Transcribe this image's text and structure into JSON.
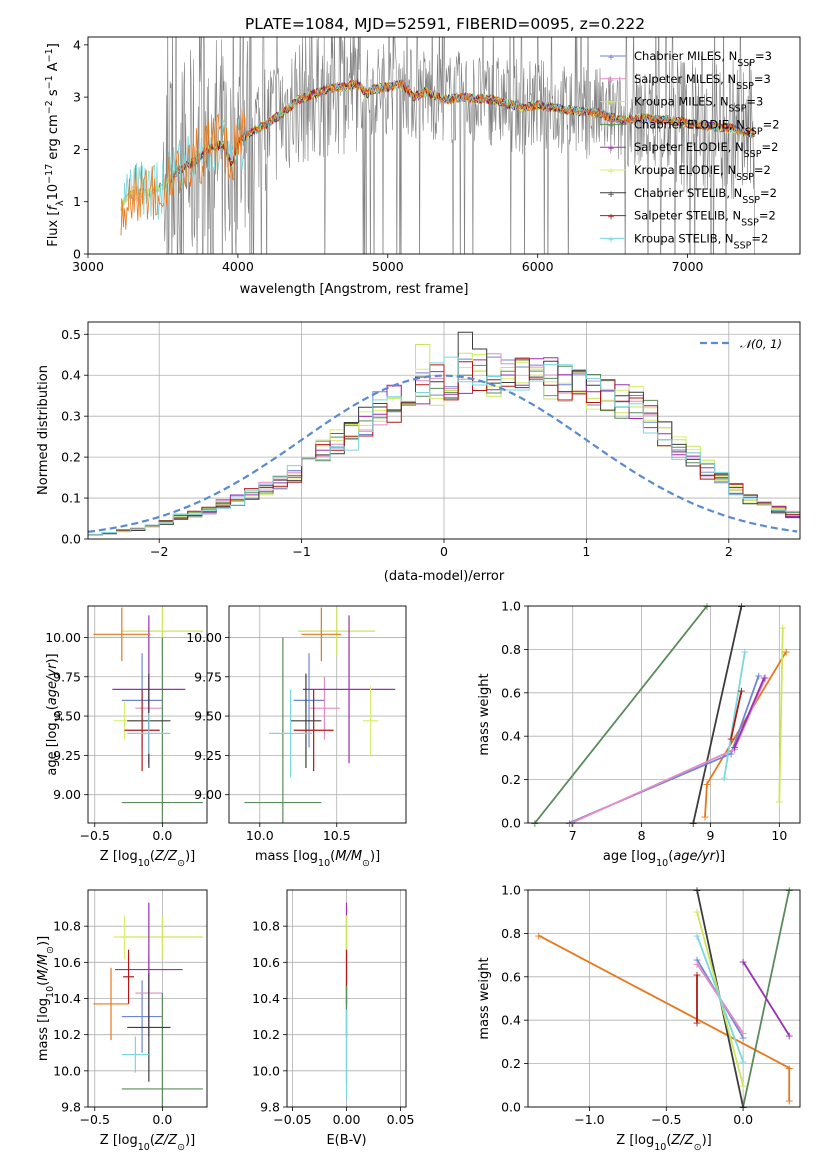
{
  "figure": {
    "title": "PLATE=1084, MJD=52591, FIBERID=0095, z=0.222"
  },
  "colors": {
    "chabrier_miles": "#6f86d6",
    "salpeter_miles": "#e58cc6",
    "kroupa_miles": "#cce65b",
    "chabrier_elodie": "#5b8a5b",
    "salpeter_elodie": "#9a2fb3",
    "kroupa_elodie": "#d7ef6c",
    "chabrier_stelib": "#3d3d3d",
    "salpeter_stelib": "#b01818",
    "kroupa_stelib": "#7ad8dc",
    "data_grey": "#808080",
    "orange": "#e6781e",
    "normal_curve": "#5b8ad0"
  },
  "chart_data": [
    {
      "id": "spectrum",
      "type": "line",
      "xlabel": "wavelength [Angstrom, rest frame]",
      "ylabel_parts": [
        "Flux [",
        "f",
        "λ",
        "10",
        "−17",
        " erg cm",
        "−2",
        " s",
        "−1",
        " A",
        "−1",
        "]"
      ],
      "xlim": [
        3000,
        7750
      ],
      "ylim": [
        0,
        4.15
      ],
      "xticks": [
        3000,
        4000,
        5000,
        6000,
        7000
      ],
      "yticks": [
        0,
        1,
        2,
        3,
        4
      ],
      "grid": false,
      "legend_position": "top-right",
      "legend": [
        {
          "base": "Chabrier MILES, N",
          "sub": "SSP",
          "tail": "=3",
          "color": "#6f86d6"
        },
        {
          "base": "Salpeter MILES, N",
          "sub": "SSP",
          "tail": "=3",
          "color": "#e58cc6"
        },
        {
          "base": "Kroupa MILES, N",
          "sub": "SSP",
          "tail": "=3",
          "color": "#cce65b"
        },
        {
          "base": "Chabrier ELODIE, N",
          "sub": "SSP",
          "tail": "=2",
          "color": "#5b8a5b"
        },
        {
          "base": "Salpeter ELODIE, N",
          "sub": "SSP",
          "tail": "=2",
          "color": "#9a2fb3"
        },
        {
          "base": "Kroupa ELODIE, N",
          "sub": "SSP",
          "tail": "=2",
          "color": "#d7ef6c"
        },
        {
          "base": "Chabrier STELIB, N",
          "sub": "SSP",
          "tail": "=2",
          "color": "#3d3d3d"
        },
        {
          "base": "Salpeter STELIB, N",
          "sub": "SSP",
          "tail": "=2",
          "color": "#b01818"
        },
        {
          "base": "Kroupa STELIB, N",
          "sub": "SSP",
          "tail": "=2",
          "color": "#7ad8dc"
        }
      ],
      "model_continuum": [
        [
          3220,
          0.95
        ],
        [
          3300,
          1.2
        ],
        [
          3400,
          1.15
        ],
        [
          3500,
          1.3
        ],
        [
          3600,
          1.6
        ],
        [
          3700,
          1.75
        ],
        [
          3800,
          2.0
        ],
        [
          3900,
          2.1
        ],
        [
          3960,
          1.7
        ],
        [
          4000,
          2.15
        ],
        [
          4100,
          2.35
        ],
        [
          4200,
          2.5
        ],
        [
          4300,
          2.7
        ],
        [
          4400,
          2.95
        ],
        [
          4500,
          3.05
        ],
        [
          4600,
          3.15
        ],
        [
          4700,
          3.2
        ],
        [
          4800,
          3.25
        ],
        [
          4860,
          3.05
        ],
        [
          4900,
          3.15
        ],
        [
          5000,
          3.2
        ],
        [
          5100,
          3.25
        ],
        [
          5175,
          3.0
        ],
        [
          5250,
          3.1
        ],
        [
          5400,
          2.95
        ],
        [
          5500,
          3.0
        ],
        [
          5700,
          2.95
        ],
        [
          5890,
          2.8
        ],
        [
          6000,
          2.85
        ],
        [
          6200,
          2.75
        ],
        [
          6400,
          2.7
        ],
        [
          6563,
          2.55
        ],
        [
          6700,
          2.6
        ],
        [
          6900,
          2.55
        ],
        [
          7100,
          2.45
        ],
        [
          7300,
          2.4
        ],
        [
          7450,
          2.3
        ]
      ],
      "data_range": [
        3220,
        7450
      ],
      "data_noisy_start": 3500
    },
    {
      "id": "residuals",
      "type": "step-histogram",
      "xlabel": "(data-model)/error",
      "ylabel": "Normed distribution",
      "xlim": [
        -2.5,
        2.5
      ],
      "ylim": [
        0,
        0.53
      ],
      "xticks": [
        -2,
        -1,
        0,
        1,
        2
      ],
      "yticks": [
        0.0,
        0.1,
        0.2,
        0.3,
        0.4,
        0.5
      ],
      "grid": true,
      "legend_position": "top-right",
      "legend_label": "𝒩(0, 1)",
      "normal_curve": {
        "mean": 0,
        "sigma": 1,
        "style": "dashed"
      },
      "bin_width": 0.1,
      "bin_start": -2.5,
      "reference_heights": [
        0.012,
        0.014,
        0.02,
        0.024,
        0.03,
        0.04,
        0.055,
        0.062,
        0.07,
        0.085,
        0.095,
        0.11,
        0.125,
        0.14,
        0.16,
        0.2,
        0.22,
        0.24,
        0.25,
        0.29,
        0.32,
        0.33,
        0.35,
        0.37,
        0.38,
        0.39,
        0.4,
        0.41,
        0.4,
        0.41,
        0.42,
        0.41,
        0.39,
        0.38,
        0.37,
        0.36,
        0.35,
        0.34,
        0.33,
        0.3,
        0.26,
        0.22,
        0.2,
        0.17,
        0.15,
        0.12,
        0.1,
        0.085,
        0.07,
        0.06
      ],
      "series": [
        {
          "color": "#6f86d6",
          "peak_bin": 30,
          "peak": 0.42
        },
        {
          "color": "#e58cc6",
          "peak_bin": 27,
          "peak": 0.41
        },
        {
          "color": "#cce65b",
          "peak_bin": 23,
          "peak": 0.475
        },
        {
          "color": "#5b8a5b",
          "peak_bin": 26,
          "peak": 0.4
        },
        {
          "color": "#9a2fb3",
          "peak_bin": 31,
          "peak": 0.44
        },
        {
          "color": "#d7ef6c",
          "peak_bin": 25,
          "peak": 0.4
        },
        {
          "color": "#3d3d3d",
          "peak_bin": 26,
          "peak": 0.505
        },
        {
          "color": "#b01818",
          "peak_bin": 30,
          "peak": 0.44
        },
        {
          "color": "#7ad8dc",
          "peak_bin": 24,
          "peak": 0.43
        }
      ]
    },
    {
      "id": "age_vs_Z",
      "type": "errorbar",
      "xlabel_parts": [
        "Z [log",
        "10",
        "(",
        "Z/Z",
        "⊙",
        ")]"
      ],
      "ylabel_parts": [
        "age  [log",
        "10",
        "(",
        "age/yr",
        ")]"
      ],
      "xlim": [
        -0.55,
        0.33
      ],
      "ylim": [
        8.82,
        10.2
      ],
      "xticks": [
        -0.5,
        0.0
      ],
      "yticks": [
        9.0,
        9.25,
        9.5,
        9.75,
        10.0
      ],
      "xticklabels": [
        "−0.5",
        "0.0"
      ],
      "yticklabels": [
        "9.00",
        "9.25",
        "9.50",
        "9.75",
        "10.00"
      ],
      "grid": true,
      "points": [
        {
          "x": -0.15,
          "y": 9.6,
          "xerr": 0.15,
          "yerr": 0.3,
          "color": "#6f86d6"
        },
        {
          "x": -0.1,
          "y": 9.55,
          "xerr": 0.1,
          "yerr": 0.2,
          "color": "#e58cc6"
        },
        {
          "x": 0.0,
          "y": 10.04,
          "xerr": 0.3,
          "yerr": 0.15,
          "color": "#cce65b"
        },
        {
          "x": 0.0,
          "y": 8.95,
          "xerr": 0.3,
          "yerr": 1.05,
          "color": "#5b8a5b"
        },
        {
          "x": -0.1,
          "y": 9.67,
          "xerr": 0.27,
          "yerr": 0.47,
          "color": "#9a2fb3"
        },
        {
          "x": -0.28,
          "y": 9.47,
          "xerr": 0.08,
          "yerr": 0.12,
          "color": "#d7ef6c"
        },
        {
          "x": -0.1,
          "y": 9.47,
          "xerr": 0.16,
          "yerr": 0.3,
          "color": "#3d3d3d"
        },
        {
          "x": -0.15,
          "y": 9.41,
          "xerr": 0.13,
          "yerr": 0.26,
          "color": "#b01818"
        },
        {
          "x": -0.1,
          "y": 9.39,
          "xerr": 0.16,
          "yerr": 0.13,
          "color": "#7ad8dc"
        },
        {
          "x": -0.3,
          "y": 10.02,
          "xerr": 0.21,
          "yerr": 0.17,
          "color": "#e6781e"
        }
      ]
    },
    {
      "id": "age_vs_mass",
      "type": "errorbar",
      "xlabel_parts": [
        "mass [log",
        "10",
        "(",
        "M/M",
        "⊙",
        ")]"
      ],
      "xlim": [
        9.8,
        10.95
      ],
      "ylim": [
        8.82,
        10.2
      ],
      "xticks": [
        10.0,
        10.5
      ],
      "yticks": [
        9.0,
        9.25,
        9.5,
        9.75,
        10.0
      ],
      "xticklabels": [
        "10.0",
        "10.5"
      ],
      "yticklabels": [
        "9.00",
        "9.25",
        "9.50",
        "9.75",
        "10.00"
      ],
      "grid": true,
      "points": [
        {
          "x": 10.32,
          "y": 9.6,
          "xerr": 0.1,
          "yerr": 0.3,
          "color": "#6f86d6"
        },
        {
          "x": 10.42,
          "y": 9.55,
          "xerr": 0.1,
          "yerr": 0.2,
          "color": "#e58cc6"
        },
        {
          "x": 10.5,
          "y": 10.04,
          "xerr": 0.25,
          "yerr": 0.15,
          "color": "#cce65b"
        },
        {
          "x": 10.15,
          "y": 8.95,
          "xerr": 0.25,
          "yerr": 1.05,
          "color": "#5b8a5b"
        },
        {
          "x": 10.58,
          "y": 9.67,
          "xerr": 0.3,
          "yerr": 0.47,
          "color": "#9a2fb3"
        },
        {
          "x": 10.72,
          "y": 9.47,
          "xerr": 0.05,
          "yerr": 0.22,
          "color": "#d7ef6c"
        },
        {
          "x": 10.3,
          "y": 9.47,
          "xerr": 0.1,
          "yerr": 0.3,
          "color": "#3d3d3d"
        },
        {
          "x": 10.35,
          "y": 9.41,
          "xerr": 0.13,
          "yerr": 0.26,
          "color": "#b01818"
        },
        {
          "x": 10.2,
          "y": 9.39,
          "xerr": 0.14,
          "yerr": 0.28,
          "color": "#7ad8dc"
        },
        {
          "x": 10.4,
          "y": 10.02,
          "xerr": 0.13,
          "yerr": 0.17,
          "color": "#e6781e"
        }
      ]
    },
    {
      "id": "massweight_vs_age",
      "type": "line",
      "xlabel_parts": [
        "age  [log",
        "10",
        "(",
        "age/yr",
        ")]"
      ],
      "ylabel": "mass weight",
      "xlim": [
        6.35,
        10.3
      ],
      "ylim": [
        0,
        1.0
      ],
      "xticks": [
        7,
        8,
        9,
        10
      ],
      "yticks": [
        0.0,
        0.2,
        0.4,
        0.6,
        0.8,
        1.0
      ],
      "grid": true,
      "series": [
        {
          "color": "#5b8a5b",
          "points": [
            [
              6.45,
              0.0
            ],
            [
              8.95,
              1.0
            ]
          ]
        },
        {
          "color": "#3d3d3d",
          "points": [
            [
              8.75,
              0.0
            ],
            [
              9.45,
              1.0
            ]
          ]
        },
        {
          "color": "#e6781e",
          "points": [
            [
              8.92,
              0.03
            ],
            [
              8.95,
              0.18
            ],
            [
              10.1,
              0.79
            ]
          ]
        },
        {
          "color": "#6f86d6",
          "points": [
            [
              6.95,
              0.0
            ],
            [
              9.3,
              0.32
            ],
            [
              9.7,
              0.68
            ]
          ]
        },
        {
          "color": "#e58cc6",
          "points": [
            [
              6.98,
              0.0
            ],
            [
              9.35,
              0.34
            ],
            [
              9.8,
              0.67
            ]
          ]
        },
        {
          "color": "#9a2fb3",
          "points": [
            [
              9.35,
              0.35
            ],
            [
              9.78,
              0.67
            ]
          ]
        },
        {
          "color": "#cce65b",
          "points": [
            [
              10.0,
              0.1
            ],
            [
              10.05,
              0.9
            ]
          ]
        },
        {
          "color": "#7ad8dc",
          "points": [
            [
              9.2,
              0.21
            ],
            [
              9.5,
              0.79
            ]
          ]
        },
        {
          "color": "#b01818",
          "points": [
            [
              9.3,
              0.39
            ],
            [
              9.45,
              0.61
            ]
          ]
        }
      ]
    },
    {
      "id": "mass_vs_Z",
      "type": "errorbar",
      "xlabel_parts": [
        "Z [log",
        "10",
        "(",
        "Z/Z",
        "⊙",
        ")]"
      ],
      "ylabel_parts": [
        "mass [log",
        "10",
        "(",
        "M/M",
        "⊙",
        ")]"
      ],
      "xlim": [
        -0.55,
        0.33
      ],
      "ylim": [
        9.8,
        11.0
      ],
      "xticks": [
        -0.5,
        0.0
      ],
      "yticks": [
        9.8,
        10.0,
        10.2,
        10.4,
        10.6,
        10.8
      ],
      "xticklabels": [
        "−0.5",
        "0.0"
      ],
      "yticklabels": [
        "9.8",
        "10.0",
        "10.2",
        "10.4",
        "10.6",
        "10.8"
      ],
      "grid": true,
      "points": [
        {
          "x": -0.15,
          "y": 10.3,
          "xerr": 0.15,
          "yerr": 0.2,
          "color": "#6f86d6"
        },
        {
          "x": -0.1,
          "y": 10.43,
          "xerr": 0.1,
          "yerr": 0.2,
          "color": "#e58cc6"
        },
        {
          "x": 0.0,
          "y": 10.74,
          "xerr": 0.3,
          "yerr": 0.12,
          "color": "#cce65b"
        },
        {
          "x": 0.0,
          "y": 9.9,
          "xerr": 0.3,
          "yerr": 0.53,
          "color": "#5b8a5b"
        },
        {
          "x": -0.1,
          "y": 10.56,
          "xerr": 0.25,
          "yerr": 0.37,
          "color": "#9a2fb3"
        },
        {
          "x": -0.28,
          "y": 10.74,
          "xerr": 0.08,
          "yerr": 0.12,
          "color": "#d7ef6c"
        },
        {
          "x": -0.1,
          "y": 10.24,
          "xerr": 0.16,
          "yerr": 0.3,
          "color": "#3d3d3d"
        },
        {
          "x": -0.25,
          "y": 10.52,
          "xerr": 0.04,
          "yerr": 0.15,
          "color": "#b01818"
        },
        {
          "x": -0.2,
          "y": 10.09,
          "xerr": 0.1,
          "yerr": 0.1,
          "color": "#7ad8dc"
        },
        {
          "x": -0.38,
          "y": 10.37,
          "xerr": 0.13,
          "yerr": 0.2,
          "color": "#e6781e"
        }
      ]
    },
    {
      "id": "mass_vs_EBV",
      "type": "errorbar",
      "xlabel": "E(B-V)",
      "xlim": [
        -0.055,
        0.055
      ],
      "ylim": [
        9.8,
        11.0
      ],
      "xticks": [
        -0.05,
        0.0,
        0.05
      ],
      "yticks": [
        9.8,
        10.0,
        10.2,
        10.4,
        10.6,
        10.8
      ],
      "xticklabels": [
        "−0.05",
        "0.00",
        "0.05"
      ],
      "yticklabels": [
        "9.8",
        "10.0",
        "10.2",
        "10.4",
        "10.6",
        "10.8"
      ],
      "grid": true,
      "points": [
        {
          "x": 0.0,
          "y": 10.56,
          "xerr": 0.0,
          "yerr": 0.37,
          "color": "#9a2fb3"
        },
        {
          "x": 0.0,
          "y": 10.74,
          "xerr": 0.0,
          "yerr": 0.12,
          "color": "#cce65b"
        },
        {
          "x": 0.0,
          "y": 10.52,
          "xerr": 0.0,
          "yerr": 0.15,
          "color": "#b01818"
        },
        {
          "x": 0.0,
          "y": 10.2,
          "xerr": 0.0,
          "yerr": 0.27,
          "color": "#5b8a5b"
        },
        {
          "x": 0.0,
          "y": 10.09,
          "xerr": 0.0,
          "yerr": 0.25,
          "color": "#7ad8dc"
        }
      ]
    },
    {
      "id": "massweight_vs_Z",
      "type": "line",
      "xlabel_parts": [
        "Z [log",
        "10",
        "(",
        "Z/Z",
        "⊙",
        ")]"
      ],
      "ylabel": "mass weight",
      "xlim": [
        -1.4,
        0.37
      ],
      "ylim": [
        0,
        1.0
      ],
      "xticks": [
        -1.0,
        -0.5,
        0.0
      ],
      "xticklabels": [
        "−1.0",
        "−0.5",
        "0.0"
      ],
      "yticks": [
        0.0,
        0.2,
        0.4,
        0.6,
        0.8,
        1.0
      ],
      "grid": true,
      "series": [
        {
          "color": "#e6781e",
          "points": [
            [
              -1.33,
              0.79
            ],
            [
              0.3,
              0.18
            ],
            [
              0.3,
              0.03
            ]
          ]
        },
        {
          "color": "#5b8a5b",
          "points": [
            [
              0.0,
              0.0
            ],
            [
              0.3,
              1.0
            ]
          ]
        },
        {
          "color": "#3d3d3d",
          "points": [
            [
              0.0,
              0.0
            ],
            [
              -0.3,
              1.0
            ]
          ]
        },
        {
          "color": "#6f86d6",
          "points": [
            [
              -0.3,
              0.68
            ],
            [
              0.0,
              0.32
            ]
          ]
        },
        {
          "color": "#e58cc6",
          "points": [
            [
              -0.3,
              0.66
            ],
            [
              0.0,
              0.34
            ]
          ]
        },
        {
          "color": "#9a2fb3",
          "points": [
            [
              0.0,
              0.67
            ],
            [
              0.3,
              0.33
            ]
          ]
        },
        {
          "color": "#cce65b",
          "points": [
            [
              -0.3,
              0.9
            ],
            [
              0.0,
              0.1
            ]
          ]
        },
        {
          "color": "#7ad8dc",
          "points": [
            [
              -0.3,
              0.79
            ],
            [
              0.0,
              0.21
            ]
          ]
        },
        {
          "color": "#b01818",
          "points": [
            [
              -0.3,
              0.61
            ],
            [
              -0.3,
              0.39
            ]
          ]
        }
      ]
    }
  ]
}
